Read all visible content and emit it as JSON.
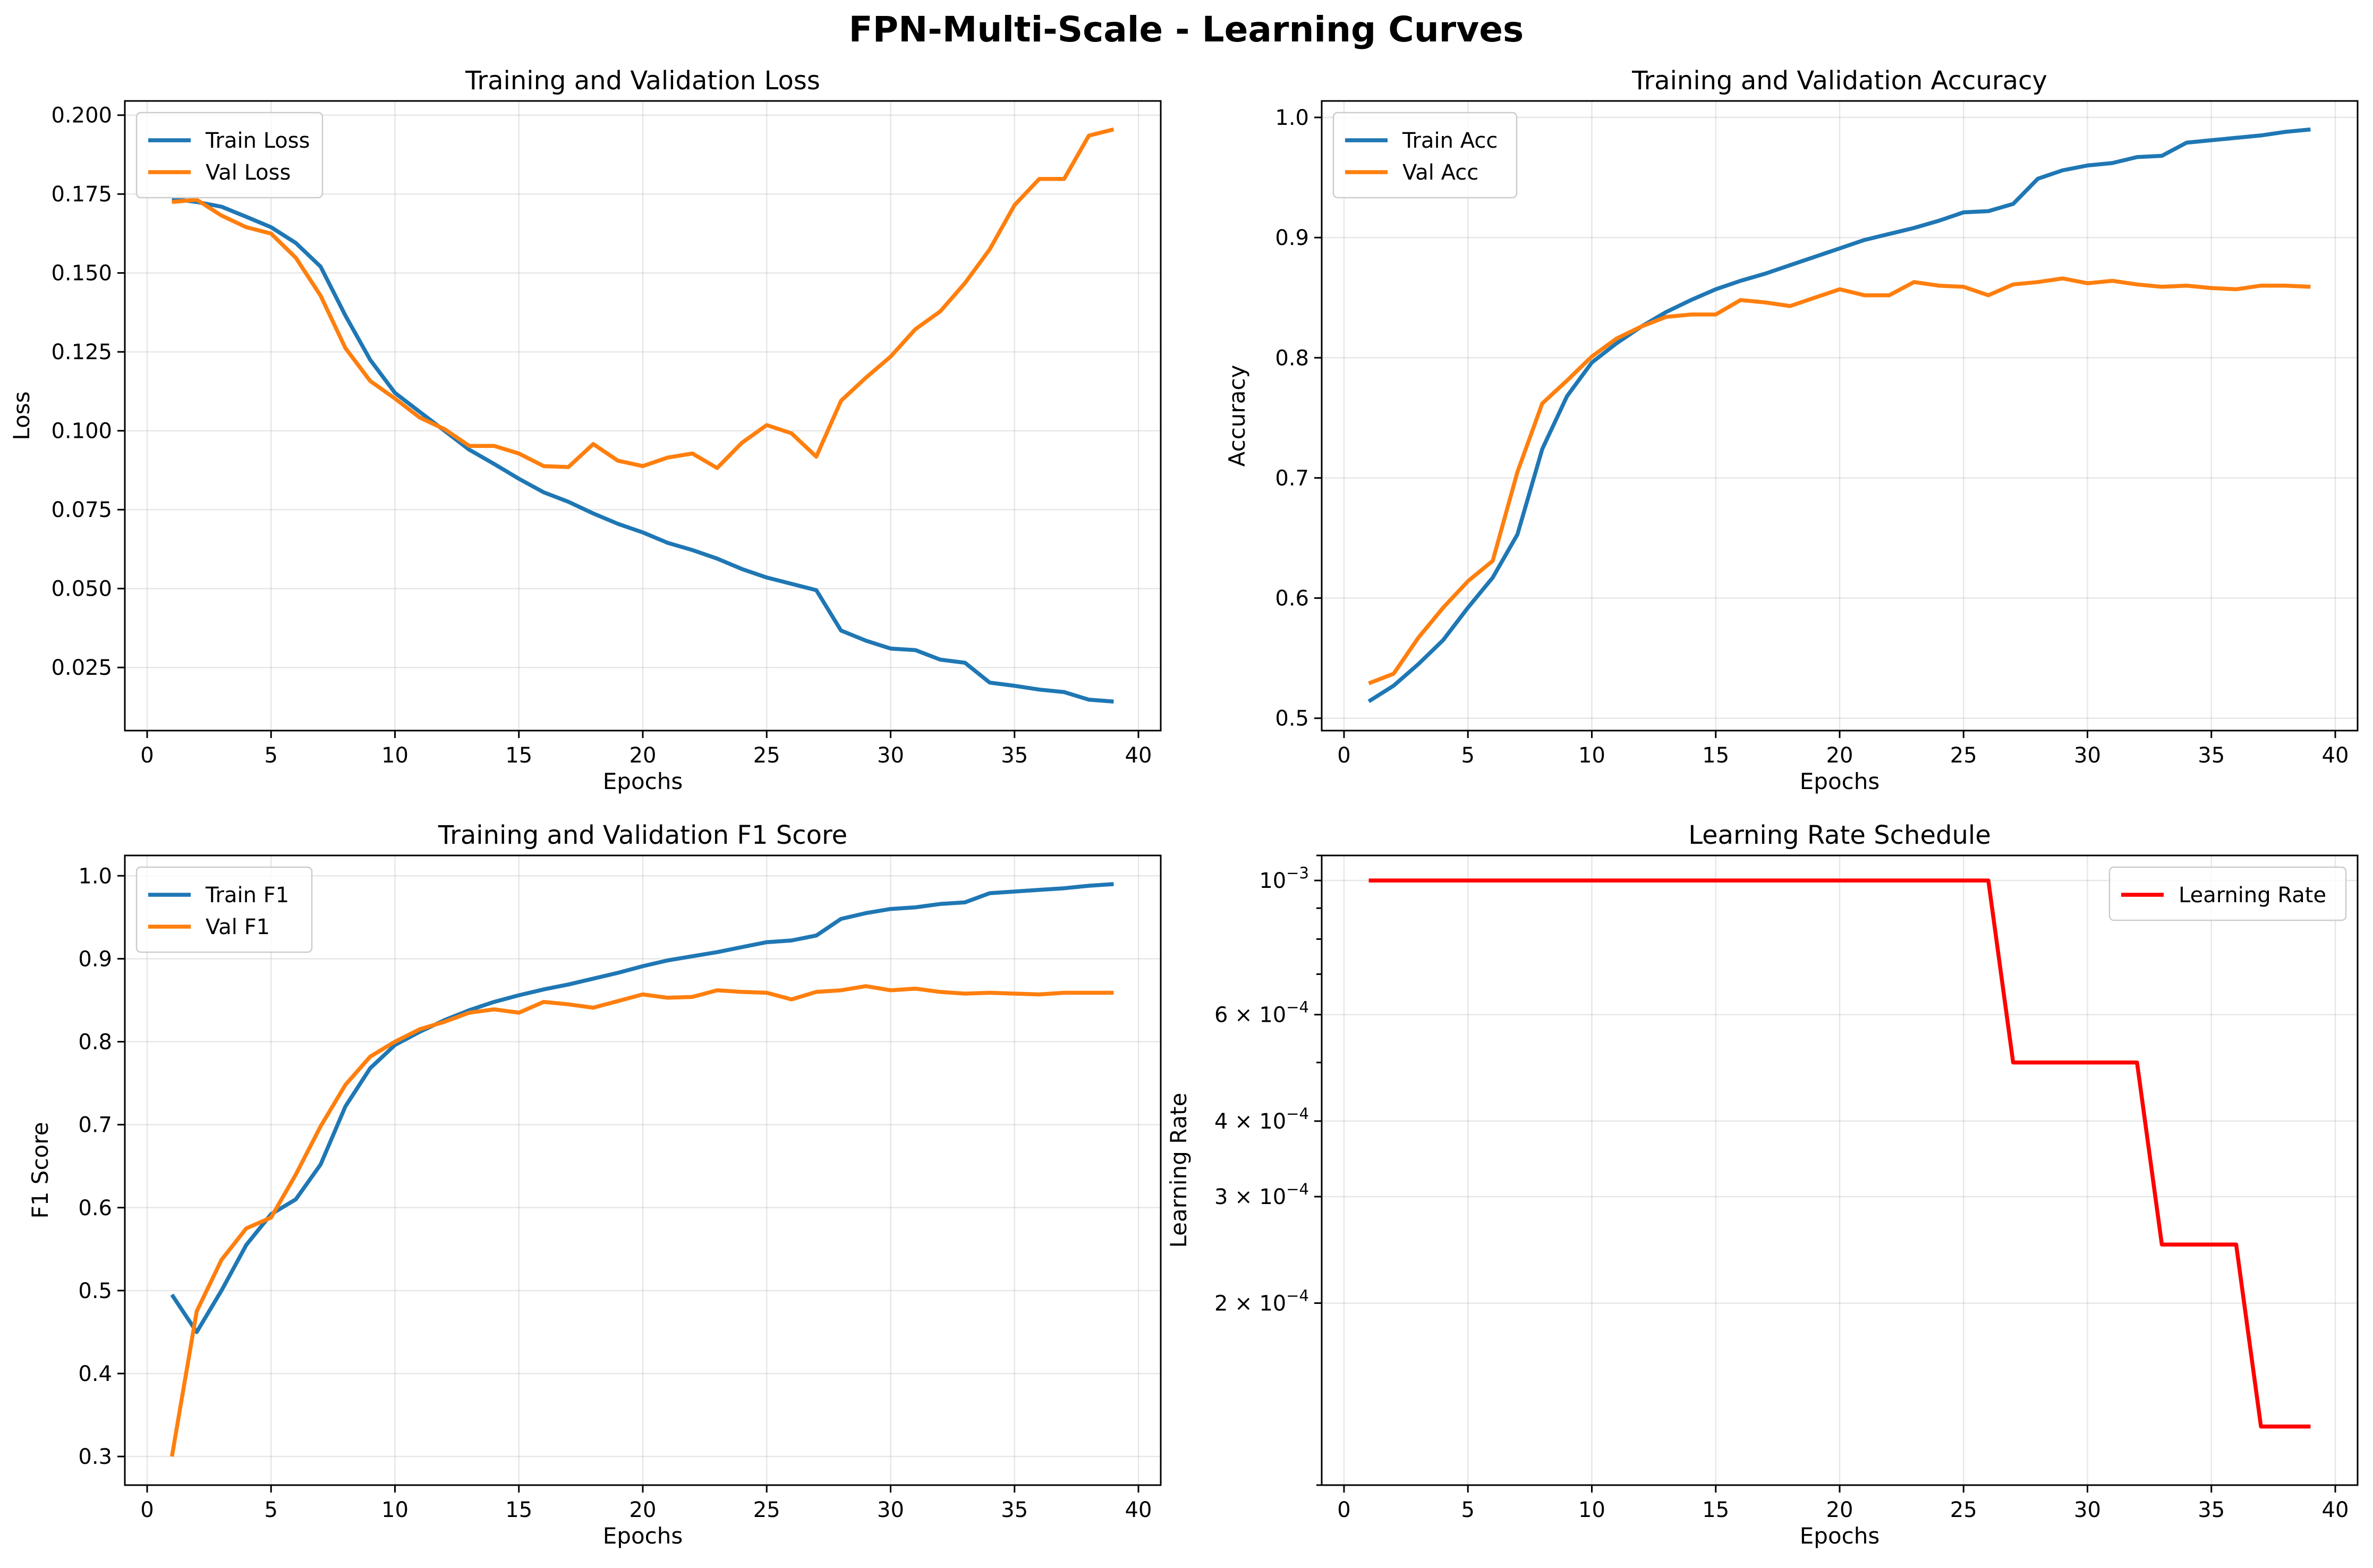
{
  "figure": {
    "suptitle": "FPN-Multi-Scale - Learning Curves"
  },
  "colors": {
    "train": "#1f77b4",
    "val": "#ff7f0e",
    "lr": "#ff0000"
  },
  "chart_data": [
    {
      "id": "loss",
      "type": "line",
      "title": "Training and Validation Loss",
      "xlabel": "Epochs",
      "ylabel": "Loss",
      "xlim": [
        -0.9,
        40.9
      ],
      "ylim": [
        0.005,
        0.2045
      ],
      "xticks": [
        0,
        5,
        10,
        15,
        20,
        25,
        30,
        35,
        40
      ],
      "xtick_labels": [
        "0",
        "5",
        "10",
        "15",
        "20",
        "25",
        "30",
        "35",
        "40"
      ],
      "yticks": [
        0.025,
        0.05,
        0.075,
        0.1,
        0.125,
        0.15,
        0.175,
        0.2
      ],
      "ytick_labels": [
        "0.025",
        "0.050",
        "0.075",
        "0.100",
        "0.125",
        "0.150",
        "0.175",
        "0.200"
      ],
      "grid": true,
      "legend_loc": "upper-left",
      "x": [
        1,
        2,
        3,
        4,
        5,
        6,
        7,
        8,
        9,
        10,
        11,
        12,
        13,
        14,
        15,
        16,
        17,
        18,
        19,
        20,
        21,
        22,
        23,
        24,
        25,
        26,
        27,
        28,
        29,
        30,
        31,
        32,
        33,
        34,
        35,
        36,
        37,
        38,
        39
      ],
      "series": [
        {
          "name": "Train Loss",
          "color_key": "train",
          "values": [
            0.1735,
            0.1725,
            0.171,
            0.1678,
            0.1645,
            0.1595,
            0.152,
            0.1365,
            0.1225,
            0.112,
            0.106,
            0.1,
            0.094,
            0.0895,
            0.0848,
            0.0805,
            0.0775,
            0.0738,
            0.0705,
            0.0678,
            0.0645,
            0.0622,
            0.0595,
            0.0562,
            0.0535,
            0.0515,
            0.0495,
            0.0367,
            0.0335,
            0.031,
            0.0305,
            0.0275,
            0.0265,
            0.0202,
            0.0192,
            0.018,
            0.0172,
            0.0148,
            0.0142
          ]
        },
        {
          "name": "Val Loss",
          "color_key": "val",
          "values": [
            0.1725,
            0.1732,
            0.1682,
            0.1645,
            0.1625,
            0.1548,
            0.1428,
            0.1262,
            0.1158,
            0.1102,
            0.1042,
            0.1005,
            0.0952,
            0.0952,
            0.0928,
            0.0888,
            0.0885,
            0.0958,
            0.0905,
            0.0888,
            0.0915,
            0.0928,
            0.0882,
            0.0962,
            0.1018,
            0.0992,
            0.0918,
            0.1095,
            0.1168,
            0.1235,
            0.1322,
            0.1378,
            0.1468,
            0.1575,
            0.1715,
            0.1798,
            0.1798,
            0.1935,
            0.1955
          ]
        }
      ]
    },
    {
      "id": "accuracy",
      "type": "line",
      "title": "Training and Validation Accuracy",
      "xlabel": "Epochs",
      "ylabel": "Accuracy",
      "xlim": [
        -0.9,
        40.9
      ],
      "ylim": [
        0.4897,
        1.0137
      ],
      "xticks": [
        0,
        5,
        10,
        15,
        20,
        25,
        30,
        35,
        40
      ],
      "xtick_labels": [
        "0",
        "5",
        "10",
        "15",
        "20",
        "25",
        "30",
        "35",
        "40"
      ],
      "yticks": [
        0.5,
        0.6,
        0.7,
        0.8,
        0.9,
        1.0
      ],
      "ytick_labels": [
        "0.5",
        "0.6",
        "0.7",
        "0.8",
        "0.9",
        "1.0"
      ],
      "grid": true,
      "legend_loc": "upper-left",
      "x": [
        1,
        2,
        3,
        4,
        5,
        6,
        7,
        8,
        9,
        10,
        11,
        12,
        13,
        14,
        15,
        16,
        17,
        18,
        19,
        20,
        21,
        22,
        23,
        24,
        25,
        26,
        27,
        28,
        29,
        30,
        31,
        32,
        33,
        34,
        35,
        36,
        37,
        38,
        39
      ],
      "series": [
        {
          "name": "Train Acc",
          "color_key": "train",
          "values": [
            0.514,
            0.527,
            0.545,
            0.565,
            0.592,
            0.617,
            0.653,
            0.724,
            0.768,
            0.796,
            0.812,
            0.826,
            0.838,
            0.848,
            0.857,
            0.864,
            0.87,
            0.877,
            0.884,
            0.891,
            0.898,
            0.903,
            0.908,
            0.914,
            0.921,
            0.922,
            0.928,
            0.949,
            0.956,
            0.96,
            0.962,
            0.967,
            0.968,
            0.979,
            0.981,
            0.983,
            0.985,
            0.988,
            0.99
          ]
        },
        {
          "name": "Val Acc",
          "color_key": "val",
          "values": [
            0.529,
            0.537,
            0.567,
            0.592,
            0.614,
            0.631,
            0.705,
            0.762,
            0.781,
            0.801,
            0.816,
            0.826,
            0.834,
            0.836,
            0.836,
            0.848,
            0.846,
            0.843,
            0.85,
            0.857,
            0.852,
            0.852,
            0.863,
            0.86,
            0.859,
            0.852,
            0.861,
            0.863,
            0.866,
            0.862,
            0.864,
            0.861,
            0.859,
            0.86,
            0.858,
            0.857,
            0.86,
            0.86,
            0.859
          ]
        }
      ]
    },
    {
      "id": "f1",
      "type": "line",
      "title": "Training and Validation F1 Score",
      "xlabel": "Epochs",
      "ylabel": "F1 Score",
      "xlim": [
        -0.9,
        40.9
      ],
      "ylim": [
        0.2655,
        1.0245
      ],
      "xticks": [
        0,
        5,
        10,
        15,
        20,
        25,
        30,
        35,
        40
      ],
      "xtick_labels": [
        "0",
        "5",
        "10",
        "15",
        "20",
        "25",
        "30",
        "35",
        "40"
      ],
      "yticks": [
        0.3,
        0.4,
        0.5,
        0.6,
        0.7,
        0.8,
        0.9,
        1.0
      ],
      "ytick_labels": [
        "0.3",
        "0.4",
        "0.5",
        "0.6",
        "0.7",
        "0.8",
        "0.9",
        "1.0"
      ],
      "grid": true,
      "legend_loc": "upper-left",
      "x": [
        1,
        2,
        3,
        4,
        5,
        6,
        7,
        8,
        9,
        10,
        11,
        12,
        13,
        14,
        15,
        16,
        17,
        18,
        19,
        20,
        21,
        22,
        23,
        24,
        25,
        26,
        27,
        28,
        29,
        30,
        31,
        32,
        33,
        34,
        35,
        36,
        37,
        38,
        39
      ],
      "series": [
        {
          "name": "Train F1",
          "color_key": "train",
          "values": [
            0.495,
            0.45,
            0.5,
            0.555,
            0.592,
            0.61,
            0.652,
            0.722,
            0.768,
            0.796,
            0.812,
            0.826,
            0.838,
            0.848,
            0.856,
            0.863,
            0.869,
            0.876,
            0.883,
            0.891,
            0.898,
            0.903,
            0.908,
            0.914,
            0.92,
            0.922,
            0.928,
            0.948,
            0.955,
            0.96,
            0.962,
            0.966,
            0.968,
            0.979,
            0.981,
            0.983,
            0.985,
            0.988,
            0.99
          ]
        },
        {
          "name": "Val F1",
          "color_key": "val",
          "values": [
            0.3,
            0.475,
            0.537,
            0.575,
            0.588,
            0.64,
            0.698,
            0.748,
            0.782,
            0.8,
            0.815,
            0.824,
            0.835,
            0.839,
            0.835,
            0.848,
            0.845,
            0.841,
            0.849,
            0.857,
            0.853,
            0.854,
            0.862,
            0.86,
            0.859,
            0.851,
            0.86,
            0.862,
            0.867,
            0.862,
            0.864,
            0.86,
            0.858,
            0.859,
            0.858,
            0.857,
            0.859,
            0.859,
            0.859
          ]
        }
      ]
    },
    {
      "id": "lr",
      "type": "line",
      "title": "Learning Rate Schedule",
      "xlabel": "Epochs",
      "ylabel": "Learning Rate",
      "yscale": "log",
      "xlim": [
        -0.9,
        40.9
      ],
      "ylim": [
        0.0001,
        0.0011
      ],
      "xticks": [
        0,
        5,
        10,
        15,
        20,
        25,
        30,
        35,
        40
      ],
      "xtick_labels": [
        "0",
        "5",
        "10",
        "15",
        "20",
        "25",
        "30",
        "35",
        "40"
      ],
      "yticks": [
        0.0002,
        0.0003,
        0.0004,
        0.0006,
        0.001
      ],
      "ytick_labels": [
        {
          "base": "2 × 10",
          "exp": "−4"
        },
        {
          "base": "3 × 10",
          "exp": "−4"
        },
        {
          "base": "4 × 10",
          "exp": "−4"
        },
        {
          "base": "6 × 10",
          "exp": "−4"
        },
        {
          "base": "10",
          "exp": "−3"
        }
      ],
      "grid": true,
      "legend_loc": "upper-right",
      "x": [
        1,
        2,
        3,
        4,
        5,
        6,
        7,
        8,
        9,
        10,
        11,
        12,
        13,
        14,
        15,
        16,
        17,
        18,
        19,
        20,
        21,
        22,
        23,
        24,
        25,
        26,
        27,
        28,
        29,
        30,
        31,
        32,
        33,
        34,
        35,
        36,
        37,
        38,
        39
      ],
      "series": [
        {
          "name": "Learning Rate",
          "color_key": "lr",
          "values": [
            0.001,
            0.001,
            0.001,
            0.001,
            0.001,
            0.001,
            0.001,
            0.001,
            0.001,
            0.001,
            0.001,
            0.001,
            0.001,
            0.001,
            0.001,
            0.001,
            0.001,
            0.001,
            0.001,
            0.001,
            0.001,
            0.001,
            0.001,
            0.001,
            0.001,
            0.001,
            0.0005,
            0.0005,
            0.0005,
            0.0005,
            0.0005,
            0.0005,
            0.00025,
            0.00025,
            0.00025,
            0.00025,
            0.000125,
            0.000125,
            0.000125
          ]
        }
      ]
    }
  ]
}
